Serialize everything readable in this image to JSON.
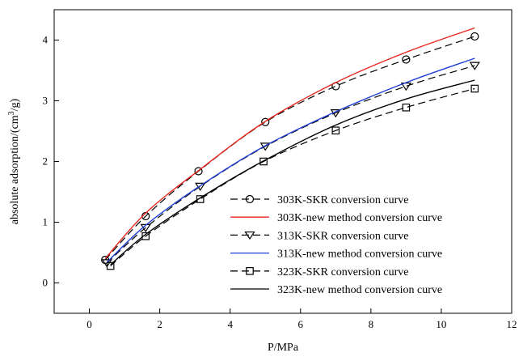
{
  "chart_data": {
    "type": "line",
    "title": "",
    "xlabel": "P/MPa",
    "ylabel": "absolute adsorption/(cm³/g)",
    "ylabel_parts": {
      "main": "absolute adsorption/(cm",
      "sup": "3",
      "tail": "/g)"
    },
    "xlim": [
      -1,
      12
    ],
    "ylim": [
      -0.5,
      4.5
    ],
    "x_ticks": [
      0,
      2,
      4,
      6,
      8,
      10,
      12
    ],
    "y_ticks": [
      0,
      1,
      2,
      3,
      4
    ],
    "grid": false,
    "legend_position": "bottom-right",
    "series": [
      {
        "name": "303K-SKR conversion curve",
        "color": "#000000",
        "line": "dashed",
        "marker": "circle",
        "x": [
          0.45,
          1.6,
          3.1,
          5.0,
          7.0,
          9.0,
          10.95
        ],
        "y": [
          0.38,
          1.1,
          1.84,
          2.65,
          3.24,
          3.68,
          4.06
        ]
      },
      {
        "name": "303K-new method conversion curve",
        "color": "#e8281e",
        "line": "solid",
        "marker": "none",
        "x": [
          0.45,
          1.6,
          3.1,
          5.0,
          7.0,
          9.0,
          10.95
        ],
        "y": [
          0.4,
          1.15,
          1.85,
          2.66,
          3.3,
          3.8,
          4.2
        ]
      },
      {
        "name": "313K-SKR conversion curve",
        "color": "#000000",
        "line": "dashed",
        "marker": "triangle-down",
        "x": [
          0.5,
          1.6,
          3.15,
          5.0,
          7.0,
          9.0,
          10.95
        ],
        "y": [
          0.33,
          0.91,
          1.59,
          2.25,
          2.8,
          3.24,
          3.58
        ]
      },
      {
        "name": "313K-new method conversion curve",
        "color": "#1f3fd6",
        "line": "solid",
        "marker": "none",
        "x": [
          0.5,
          1.6,
          3.15,
          5.0,
          7.0,
          9.0,
          10.95
        ],
        "y": [
          0.34,
          0.95,
          1.6,
          2.26,
          2.82,
          3.3,
          3.7
        ]
      },
      {
        "name": "323K-SKR conversion curve",
        "color": "#000000",
        "line": "dashed",
        "marker": "square",
        "x": [
          0.6,
          1.6,
          3.15,
          4.95,
          7.0,
          9.0,
          10.95
        ],
        "y": [
          0.28,
          0.77,
          1.38,
          2.0,
          2.51,
          2.89,
          3.2
        ]
      },
      {
        "name": "323K-new method conversion curve",
        "color": "#000000",
        "line": "solid",
        "marker": "none",
        "x": [
          0.6,
          1.6,
          3.15,
          4.95,
          7.0,
          9.0,
          10.95
        ],
        "y": [
          0.3,
          0.8,
          1.4,
          2.01,
          2.6,
          3.03,
          3.34
        ]
      }
    ]
  }
}
